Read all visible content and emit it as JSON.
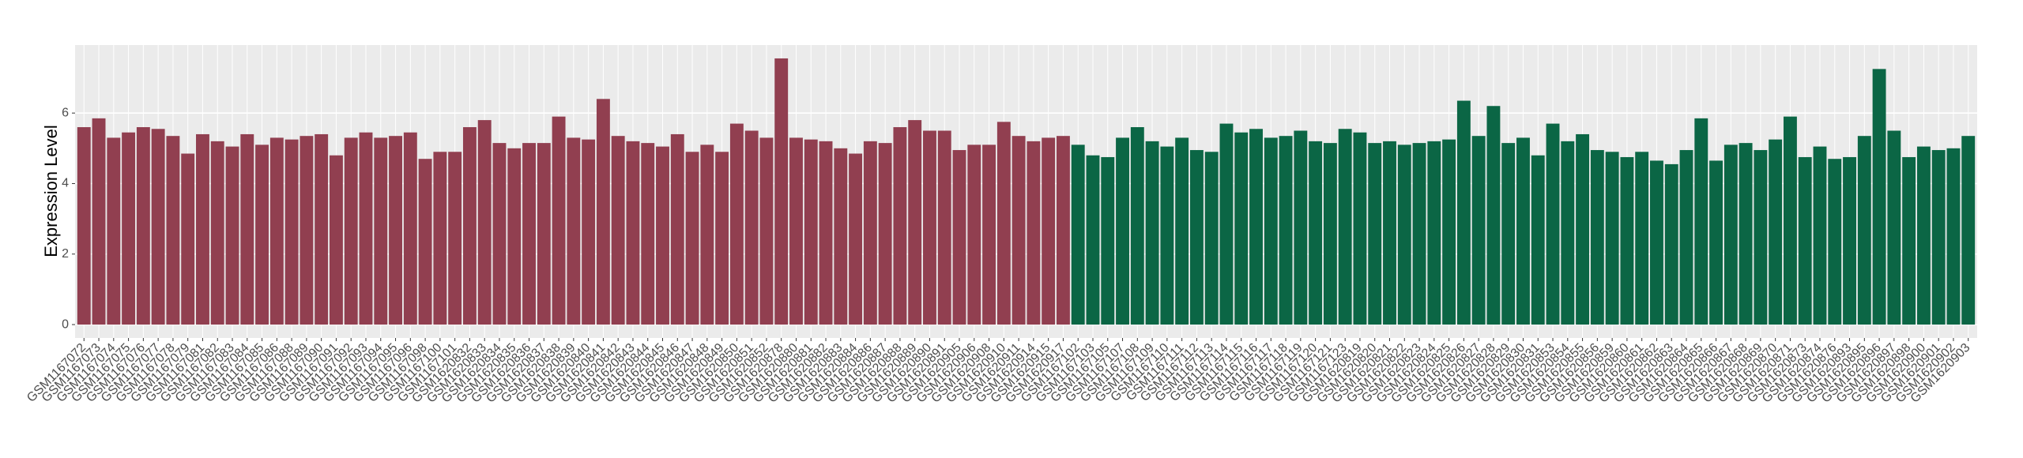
{
  "chart_data": {
    "type": "bar",
    "y_label": "Expression Level",
    "categories": [
      "GSM1167072",
      "GSM1167073",
      "GSM1167074",
      "GSM1167075",
      "GSM1167076",
      "GSM1167077",
      "GSM1167078",
      "GSM1167079",
      "GSM1167081",
      "GSM1167082",
      "GSM1167083",
      "GSM1167084",
      "GSM1167085",
      "GSM1167086",
      "GSM1167088",
      "GSM1167089",
      "GSM1167090",
      "GSM1167091",
      "GSM1167092",
      "GSM1167093",
      "GSM1167094",
      "GSM1167095",
      "GSM1167096",
      "GSM1167098",
      "GSM1167100",
      "GSM1167101",
      "GSM1620832",
      "GSM1620833",
      "GSM1620834",
      "GSM1620835",
      "GSM1620836",
      "GSM1620837",
      "GSM1620838",
      "GSM1620839",
      "GSM1620840",
      "GSM1620841",
      "GSM1620842",
      "GSM1620843",
      "GSM1620844",
      "GSM1620845",
      "GSM1620846",
      "GSM1620847",
      "GSM1620848",
      "GSM1620849",
      "GSM1620850",
      "GSM1620851",
      "GSM1620852",
      "GSM1620878",
      "GSM1620880",
      "GSM1620881",
      "GSM1620882",
      "GSM1620883",
      "GSM1620884",
      "GSM1620886",
      "GSM1620887",
      "GSM1620888",
      "GSM1620889",
      "GSM1620890",
      "GSM1620891",
      "GSM1620905",
      "GSM1620906",
      "GSM1620908",
      "GSM1620910",
      "GSM1620911",
      "GSM1620914",
      "GSM1620915",
      "GSM1620917",
      "GSM1167102",
      "GSM1167103",
      "GSM1167105",
      "GSM1167107",
      "GSM1167108",
      "GSM1167109",
      "GSM1167110",
      "GSM1167111",
      "GSM1167112",
      "GSM1167113",
      "GSM1167114",
      "GSM1167115",
      "GSM1167116",
      "GSM1167117",
      "GSM1167118",
      "GSM1167119",
      "GSM1167120",
      "GSM1167121",
      "GSM1167123",
      "GSM1620819",
      "GSM1620820",
      "GSM1620821",
      "GSM1620822",
      "GSM1620823",
      "GSM1620824",
      "GSM1620825",
      "GSM1620826",
      "GSM1620827",
      "GSM1620828",
      "GSM1620829",
      "GSM1620830",
      "GSM1620831",
      "GSM1620853",
      "GSM1620854",
      "GSM1620855",
      "GSM1620856",
      "GSM1620859",
      "GSM1620860",
      "GSM1620861",
      "GSM1620862",
      "GSM1620863",
      "GSM1620864",
      "GSM1620865",
      "GSM1620866",
      "GSM1620867",
      "GSM1620868",
      "GSM1620869",
      "GSM1620870",
      "GSM1620871",
      "GSM1620873",
      "GSM1620874",
      "GSM1620876",
      "GSM1620893",
      "GSM1620895",
      "GSM1620896",
      "GSM1620897",
      "GSM1620898",
      "GSM1620900",
      "GSM1620901",
      "GSM1620902",
      "GSM1620903"
    ],
    "series": [
      {
        "color": "#913f50",
        "values": [
          5.6,
          5.85,
          5.3,
          5.45,
          5.6,
          5.55,
          5.35,
          4.85,
          5.4,
          5.2,
          5.05,
          5.4,
          5.1,
          5.3,
          5.25,
          5.35,
          5.4,
          4.8,
          5.3,
          5.45,
          5.3,
          5.35,
          5.45,
          4.7,
          4.9,
          4.9,
          5.6,
          5.8,
          5.15,
          5.0,
          5.15,
          5.15,
          5.9,
          5.3,
          5.25,
          6.4,
          5.35,
          5.2,
          5.15,
          5.05,
          5.4,
          4.9,
          5.1,
          4.9,
          5.7,
          5.5,
          5.3,
          7.55,
          5.3,
          5.25,
          5.2,
          5.0,
          4.85,
          5.2,
          5.15,
          5.6,
          5.8,
          5.5,
          5.5,
          4.95,
          5.1,
          5.1,
          5.75,
          5.35,
          5.2,
          5.3,
          5.35,
          null,
          null,
          null,
          null,
          null,
          null,
          null,
          null,
          null,
          null,
          null,
          null,
          null,
          null,
          null,
          null,
          null,
          null,
          null,
          null,
          null,
          null,
          null,
          null,
          null,
          null,
          null,
          null,
          null,
          null,
          null,
          null,
          null,
          null,
          null,
          null,
          null,
          null,
          null,
          null,
          null,
          null,
          null,
          null,
          null,
          null,
          null,
          null,
          null,
          null,
          null,
          null,
          null,
          null,
          null,
          null,
          null,
          null,
          null,
          null,
          null
        ]
      },
      {
        "color": "#0b6645",
        "values": [
          null,
          null,
          null,
          null,
          null,
          null,
          null,
          null,
          null,
          null,
          null,
          null,
          null,
          null,
          null,
          null,
          null,
          null,
          null,
          null,
          null,
          null,
          null,
          null,
          null,
          null,
          null,
          null,
          null,
          null,
          null,
          null,
          null,
          null,
          null,
          null,
          null,
          null,
          null,
          null,
          null,
          null,
          null,
          null,
          null,
          null,
          null,
          null,
          null,
          null,
          null,
          null,
          null,
          null,
          null,
          null,
          null,
          null,
          null,
          null,
          null,
          null,
          null,
          null,
          null,
          null,
          null,
          5.1,
          4.8,
          4.75,
          5.3,
          5.6,
          5.2,
          5.05,
          5.3,
          4.95,
          4.9,
          5.7,
          5.45,
          5.55,
          5.3,
          5.35,
          5.5,
          5.2,
          5.15,
          5.55,
          5.45,
          5.15,
          5.2,
          5.1,
          5.15,
          5.2,
          5.25,
          6.35,
          5.35,
          6.2,
          5.15,
          5.3,
          4.8,
          5.7,
          5.2,
          5.4,
          4.95,
          4.9,
          4.75,
          4.9,
          4.65,
          4.55,
          4.95,
          5.85,
          4.65,
          5.1,
          5.15,
          4.95,
          5.25,
          5.9,
          4.75,
          5.05,
          4.7,
          4.75,
          5.35,
          7.25,
          5.5,
          4.75,
          5.05,
          4.95,
          5.0,
          5.35
        ]
      }
    ],
    "ylim": [
      -0.38,
      7.93
    ],
    "yticks": [
      0,
      2,
      4,
      6
    ],
    "grid": true
  }
}
